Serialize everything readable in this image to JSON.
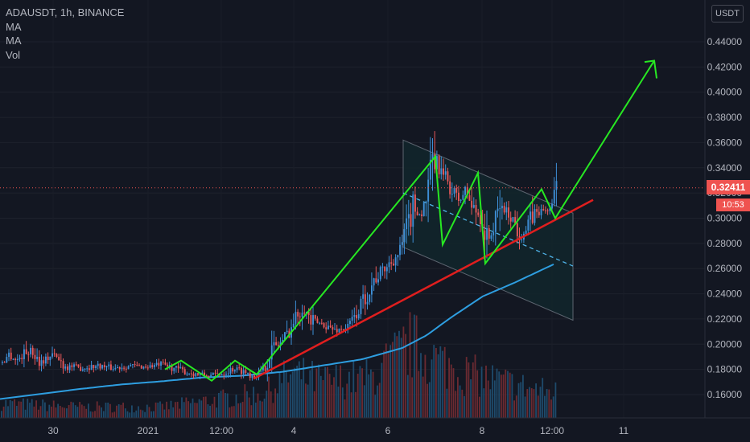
{
  "legend": {
    "symbol": "ADAUSDT, 1h, BINANCE",
    "ma1": "MA",
    "ma2": "MA",
    "vol": "Vol"
  },
  "currency_label": "USDT",
  "price_tag": "0.32411",
  "countdown": "10:53",
  "colors": {
    "background": "#131722",
    "up": "#3e8fd6",
    "down": "#e9585a",
    "ma": "#2e9ee0",
    "pattern": "#27e822",
    "trendline": "#e01e1e",
    "channel": "#12262b",
    "axis_text": "#b2b5be"
  },
  "chart_data": {
    "type": "candlestick",
    "symbol": "ADAUSDT",
    "interval": "1h",
    "exchange": "BINANCE",
    "ylim": [
      0.145,
      0.46
    ],
    "y_ticks": [
      "0.16000",
      "0.18000",
      "0.20000",
      "0.22000",
      "0.24000",
      "0.26000",
      "0.28000",
      "0.30000",
      "0.32000",
      "0.34000",
      "0.36000",
      "0.38000",
      "0.40000",
      "0.42000",
      "0.44000"
    ],
    "x_ticks": [
      "30",
      "2021",
      "12:00",
      "4",
      "6",
      "8",
      "12:00",
      "11"
    ],
    "last_price": 0.32411,
    "price_path": [
      {
        "x": 0,
        "y": 0.185
      },
      {
        "x": 10,
        "y": 0.192
      },
      {
        "x": 20,
        "y": 0.187
      },
      {
        "x": 35,
        "y": 0.196
      },
      {
        "x": 50,
        "y": 0.186
      },
      {
        "x": 65,
        "y": 0.192
      },
      {
        "x": 80,
        "y": 0.183
      },
      {
        "x": 100,
        "y": 0.181
      },
      {
        "x": 120,
        "y": 0.183
      },
      {
        "x": 140,
        "y": 0.181
      },
      {
        "x": 160,
        "y": 0.183
      },
      {
        "x": 180,
        "y": 0.182
      },
      {
        "x": 200,
        "y": 0.184
      },
      {
        "x": 215,
        "y": 0.181
      },
      {
        "x": 230,
        "y": 0.178
      },
      {
        "x": 245,
        "y": 0.176
      },
      {
        "x": 260,
        "y": 0.175
      },
      {
        "x": 275,
        "y": 0.177
      },
      {
        "x": 290,
        "y": 0.181
      },
      {
        "x": 300,
        "y": 0.179
      },
      {
        "x": 315,
        "y": 0.175
      },
      {
        "x": 325,
        "y": 0.178
      },
      {
        "x": 335,
        "y": 0.195
      },
      {
        "x": 350,
        "y": 0.203
      },
      {
        "x": 362,
        "y": 0.215
      },
      {
        "x": 375,
        "y": 0.232
      },
      {
        "x": 385,
        "y": 0.218
      },
      {
        "x": 400,
        "y": 0.216
      },
      {
        "x": 415,
        "y": 0.211
      },
      {
        "x": 430,
        "y": 0.213
      },
      {
        "x": 440,
        "y": 0.222
      },
      {
        "x": 450,
        "y": 0.234
      },
      {
        "x": 465,
        "y": 0.252
      },
      {
        "x": 480,
        "y": 0.262
      },
      {
        "x": 495,
        "y": 0.272
      },
      {
        "x": 505,
        "y": 0.292
      },
      {
        "x": 513,
        "y": 0.31
      },
      {
        "x": 522,
        "y": 0.302
      },
      {
        "x": 530,
        "y": 0.318
      },
      {
        "x": 538,
        "y": 0.348
      },
      {
        "x": 546,
        "y": 0.337
      },
      {
        "x": 555,
        "y": 0.33
      },
      {
        "x": 563,
        "y": 0.318
      },
      {
        "x": 570,
        "y": 0.314
      },
      {
        "x": 578,
        "y": 0.322
      },
      {
        "x": 586,
        "y": 0.308
      },
      {
        "x": 595,
        "y": 0.302
      },
      {
        "x": 604,
        "y": 0.282
      },
      {
        "x": 612,
        "y": 0.29
      },
      {
        "x": 620,
        "y": 0.31
      },
      {
        "x": 628,
        "y": 0.305
      },
      {
        "x": 636,
        "y": 0.3
      },
      {
        "x": 644,
        "y": 0.288
      },
      {
        "x": 652,
        "y": 0.289
      },
      {
        "x": 660,
        "y": 0.302
      },
      {
        "x": 668,
        "y": 0.305
      },
      {
        "x": 676,
        "y": 0.306
      },
      {
        "x": 684,
        "y": 0.308
      },
      {
        "x": 691,
        "y": 0.324
      }
    ],
    "moving_average": [
      {
        "x": 0,
        "y": 0.1565
      },
      {
        "x": 50,
        "y": 0.1605
      },
      {
        "x": 100,
        "y": 0.1645
      },
      {
        "x": 150,
        "y": 0.168
      },
      {
        "x": 200,
        "y": 0.1705
      },
      {
        "x": 250,
        "y": 0.1735
      },
      {
        "x": 300,
        "y": 0.175
      },
      {
        "x": 350,
        "y": 0.178
      },
      {
        "x": 400,
        "y": 0.183
      },
      {
        "x": 450,
        "y": 0.188
      },
      {
        "x": 500,
        "y": 0.197
      },
      {
        "x": 530,
        "y": 0.207
      },
      {
        "x": 560,
        "y": 0.221
      },
      {
        "x": 600,
        "y": 0.238
      },
      {
        "x": 640,
        "y": 0.249
      },
      {
        "x": 690,
        "y": 0.264
      }
    ],
    "volume_profile": [
      {
        "x": 0,
        "v": 0.2
      },
      {
        "x": 100,
        "v": 0.15
      },
      {
        "x": 200,
        "v": 0.15
      },
      {
        "x": 300,
        "v": 0.3
      },
      {
        "x": 330,
        "v": 0.35
      },
      {
        "x": 360,
        "v": 0.6
      },
      {
        "x": 400,
        "v": 0.5
      },
      {
        "x": 460,
        "v": 0.55
      },
      {
        "x": 510,
        "v": 1.0
      },
      {
        "x": 540,
        "v": 0.8
      },
      {
        "x": 580,
        "v": 0.6
      },
      {
        "x": 620,
        "v": 0.5
      },
      {
        "x": 660,
        "v": 0.4
      },
      {
        "x": 690,
        "v": 0.35
      }
    ],
    "annotations": {
      "channel_polygon": [
        [
          501,
          0.362
        ],
        [
          712,
          0.304
        ],
        [
          712,
          0.219
        ],
        [
          501,
          0.277
        ]
      ],
      "channel_midline": [
        [
          501,
          0.32
        ],
        [
          712,
          0.262
        ]
      ],
      "trendline": [
        [
          315,
          0.1725
        ],
        [
          737,
          0.3145
        ]
      ],
      "pattern_zigzag": [
        [
          205,
          0.18
        ],
        [
          225,
          0.187
        ],
        [
          263,
          0.171
        ],
        [
          292,
          0.187
        ],
        [
          319,
          0.176
        ],
        [
          541,
          0.349
        ],
        [
          550,
          0.279
        ],
        [
          594,
          0.336
        ],
        [
          603,
          0.264
        ],
        [
          673,
          0.323
        ],
        [
          690,
          0.3
        ],
        [
          813,
          0.425
        ]
      ],
      "arrowhead": [
        [
          801,
          0.424
        ],
        [
          813,
          0.425
        ],
        [
          816,
          0.411
        ]
      ]
    }
  }
}
